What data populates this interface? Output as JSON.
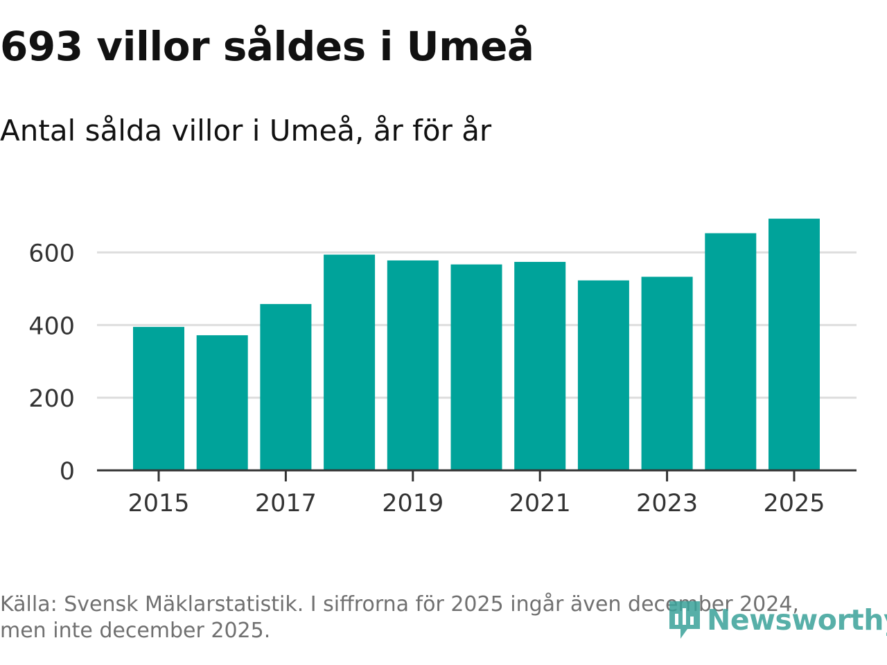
{
  "header": {
    "title": "693 villor såldes i Umeå",
    "subtitle": "Antal sålda villor i Umeå, år för år"
  },
  "footer": {
    "source_line1": "Källa: Svensk Mäklarstatistik. I siffrorna för 2025 ingår även december 2024,",
    "source_line2": "men inte december 2025.",
    "logo_text": "Newsworthy"
  },
  "colors": {
    "bar": "#00a39a",
    "grid": "#dddddd",
    "axis": "#333333",
    "logo": "#3aa29a"
  },
  "chart_data": {
    "type": "bar",
    "title": "693 villor såldes i Umeå",
    "subtitle": "Antal sålda villor i Umeå, år för år",
    "xlabel": "",
    "ylabel": "",
    "categories": [
      "2015",
      "2016",
      "2017",
      "2018",
      "2019",
      "2020",
      "2021",
      "2022",
      "2023",
      "2024",
      "2025"
    ],
    "values": [
      395,
      372,
      458,
      594,
      578,
      567,
      574,
      523,
      533,
      653,
      693
    ],
    "x_tick_labels": [
      "2015",
      "2017",
      "2019",
      "2021",
      "2023",
      "2025"
    ],
    "y_ticks": [
      0,
      200,
      400,
      600
    ],
    "ylim": [
      0,
      720
    ],
    "grid": true,
    "legend": "none"
  }
}
